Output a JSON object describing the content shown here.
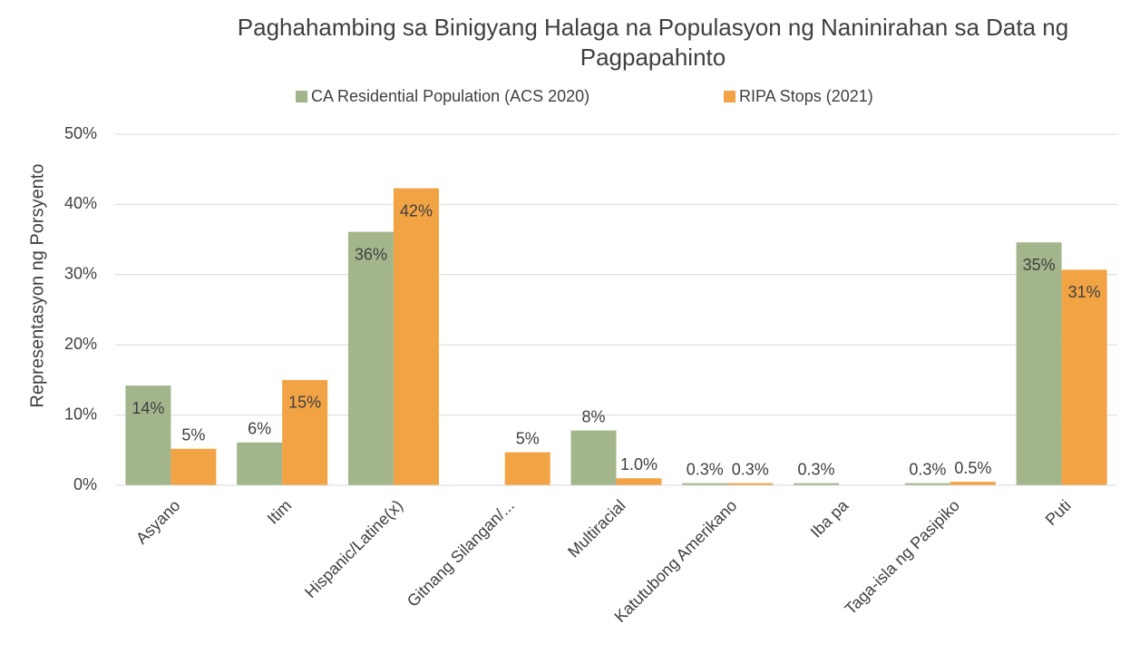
{
  "chart_data": {
    "type": "bar",
    "title": "Paghahambing sa Binigyang Halaga na Populasyon ng Naninirahan sa Data ng Pagpapahinto",
    "y_label": "Representasyon ng Porsyento",
    "categories": [
      "Asyano",
      "Itim",
      "Hispanic/Latine(x)",
      "Gitnang Silangan/...",
      "Multiracial",
      "Katutubong Amerikano",
      "Iba pa",
      "Taga-isla ng Pasipiko",
      "Puti"
    ],
    "series": [
      {
        "name": "CA Residential Population (ACS 2020)",
        "color": "#a2b58b",
        "values": [
          14.2,
          6.1,
          36.1,
          null,
          7.8,
          0.3,
          0.3,
          0.3,
          34.6
        ],
        "value_labels": [
          "14%",
          "6%",
          "36%",
          null,
          "8%",
          "0.3%",
          "0.3%",
          "0.3%",
          "35%"
        ]
      },
      {
        "name": "RIPA Stops (2021)",
        "color": "#f2a343",
        "values": [
          5.2,
          15.0,
          42.3,
          4.7,
          1.0,
          0.3,
          null,
          0.5,
          30.7
        ],
        "value_labels": [
          "5%",
          "15%",
          "42%",
          "5%",
          "1.0%",
          "0.3%",
          null,
          "0.5%",
          "31%"
        ]
      }
    ],
    "ylim": [
      0,
      50
    ],
    "yticks": [
      {
        "value": 0,
        "label": "0%"
      },
      {
        "value": 10,
        "label": "10%"
      },
      {
        "value": 20,
        "label": "20%"
      },
      {
        "value": 30,
        "label": "30%"
      },
      {
        "value": 40,
        "label": "40%"
      },
      {
        "value": 50,
        "label": "50%"
      }
    ],
    "grid": true,
    "legend": "top"
  }
}
